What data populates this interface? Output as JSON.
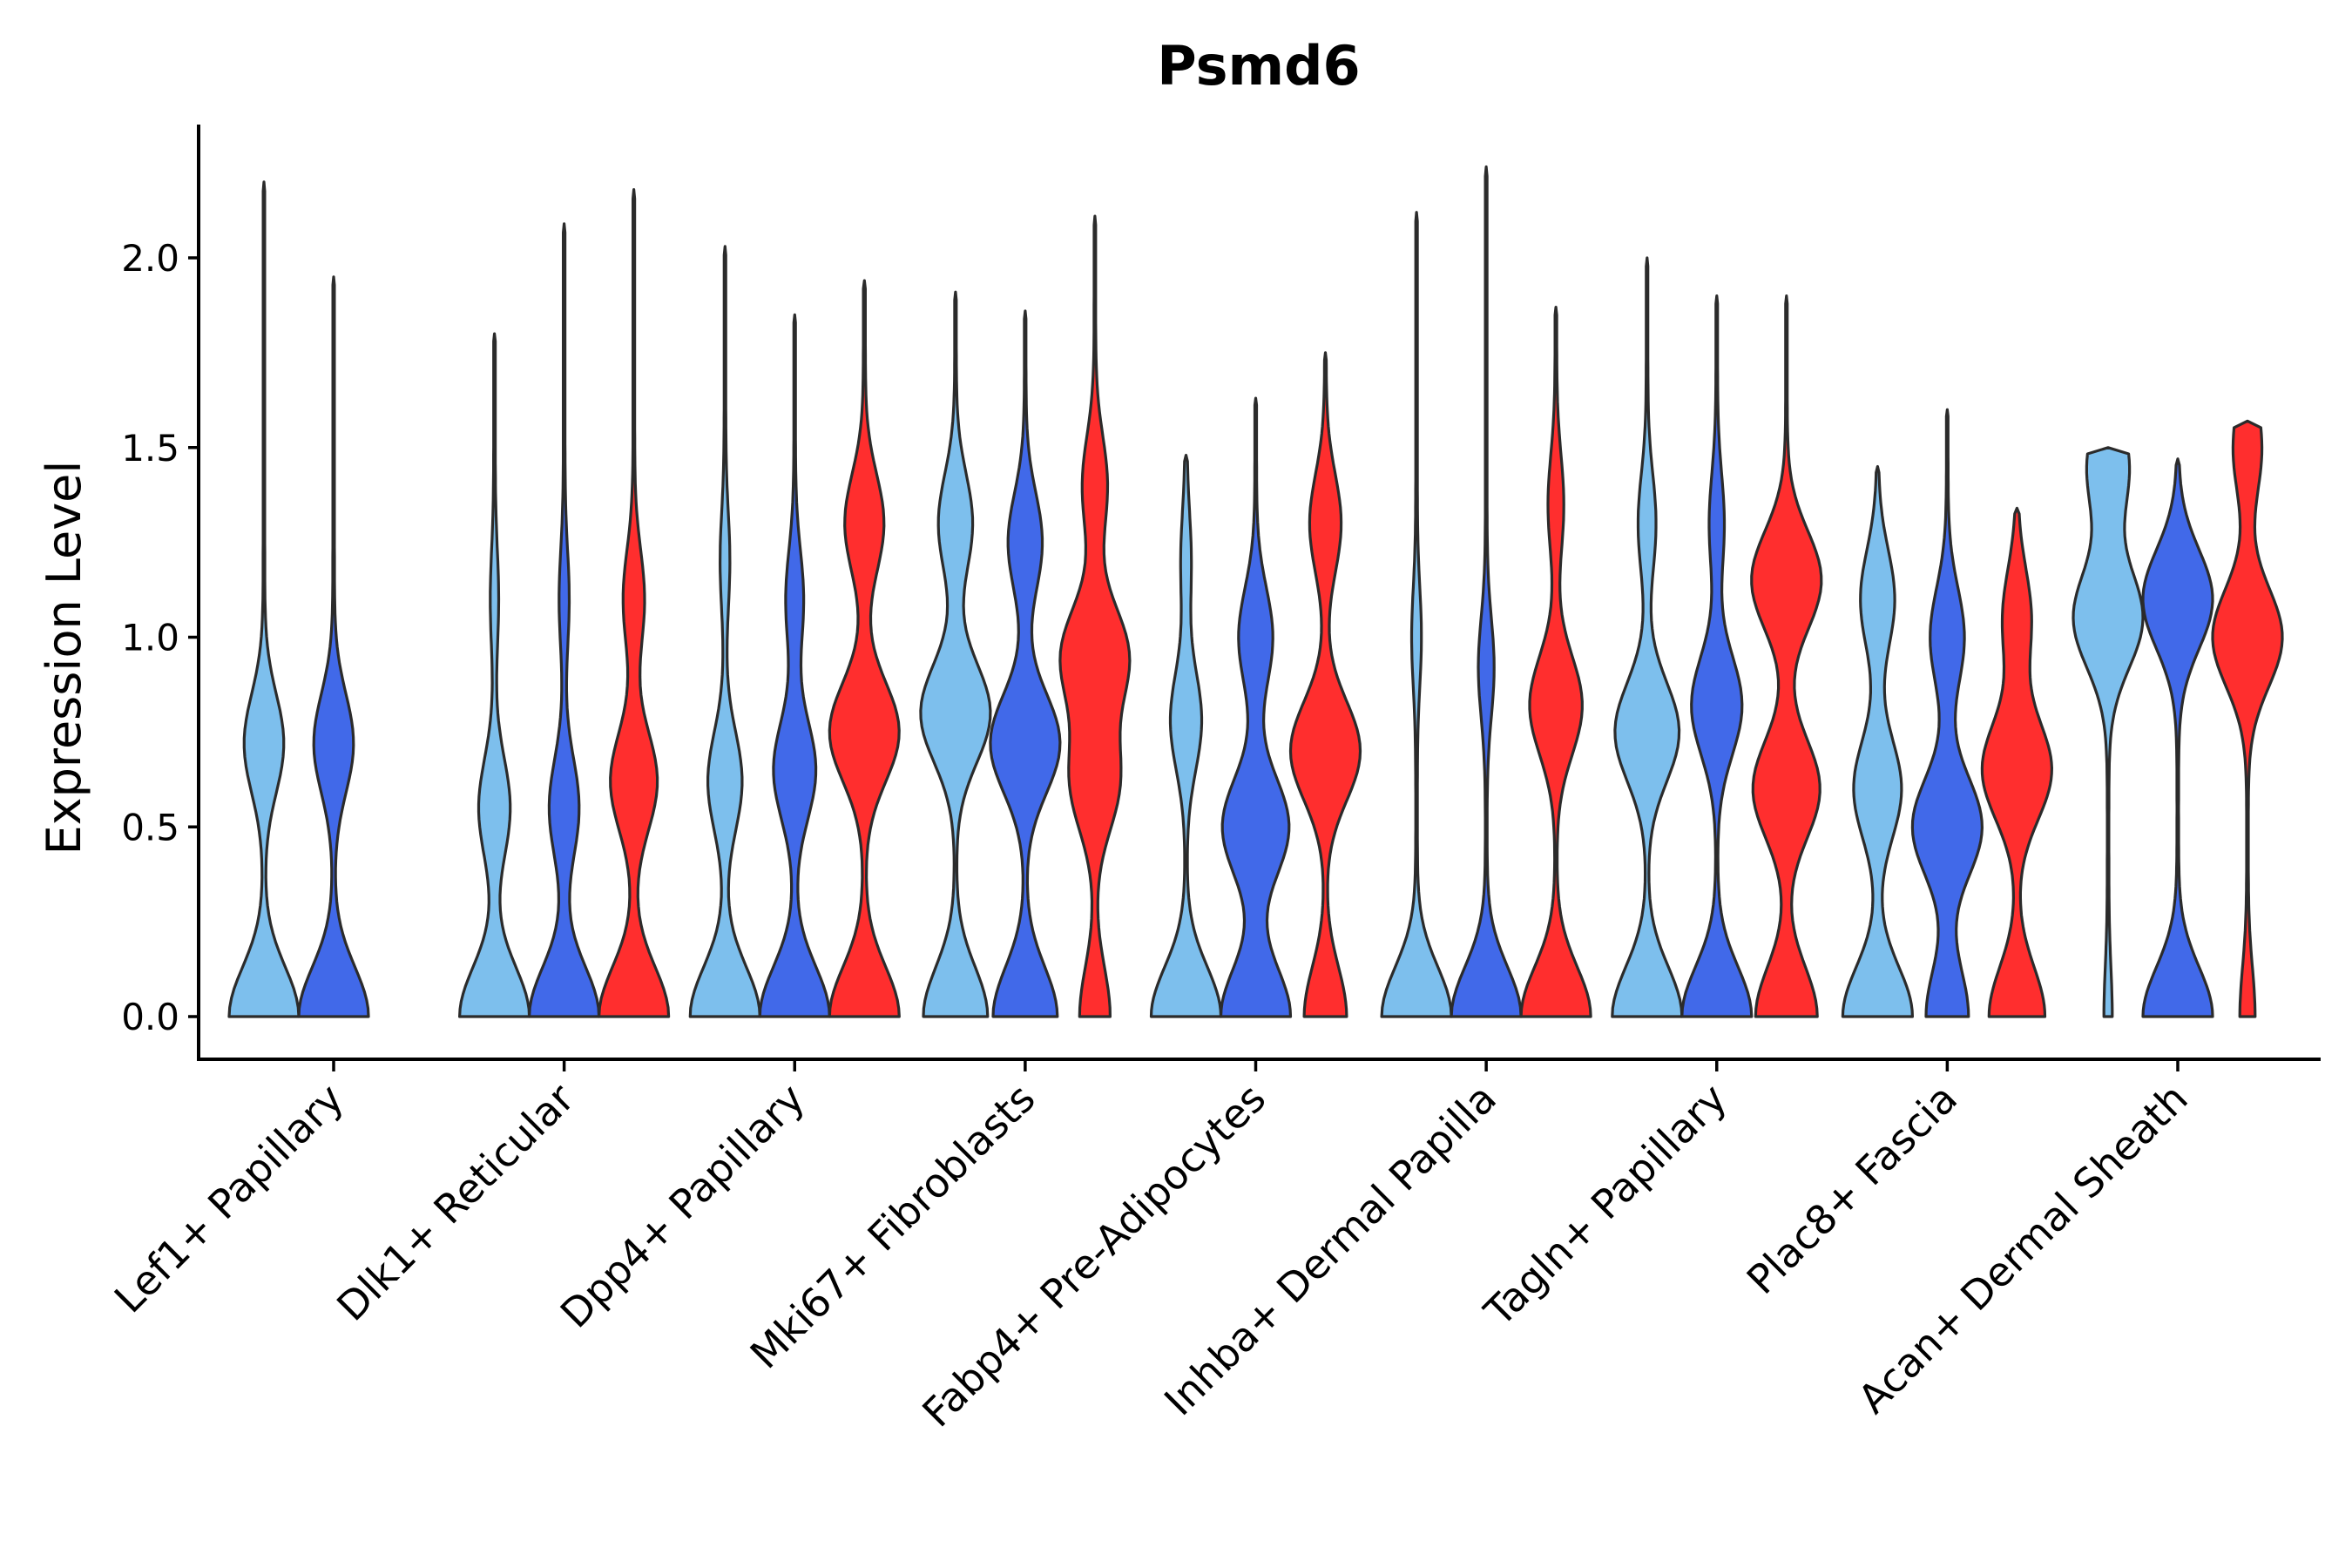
{
  "chart_data": {
    "type": "violin",
    "title": "Psmd6",
    "xlabel": "",
    "ylabel": "Expression Level",
    "ylim": [
      -0.11,
      2.35
    ],
    "yticks": [
      0.0,
      0.5,
      1.0,
      1.5,
      2.0
    ],
    "ytick_labels": [
      "0.0",
      "0.5",
      "1.0",
      "1.5",
      "2.0"
    ],
    "grid": false,
    "legend": "none",
    "split_colors": [
      "#7DBFED",
      "#4169E9",
      "#FF2E2E"
    ],
    "categories": [
      "Lef1+ Papillary",
      "Dlk1+ Reticular",
      "Dpp4+ Papillary",
      "Mki67+ Fibroblasts",
      "Fabp4+ Pre-Adipocytes",
      "Inhba+ Dermal Papilla",
      "Tagln+ Papillary",
      "Plac8+ Fascia",
      "Acan+ Dermal Sheath"
    ],
    "violins": [
      {
        "category_index": 0,
        "split": 0,
        "max": 2.2,
        "peaks": [
          [
            0.0,
            0.5
          ],
          [
            0.72,
            0.28
          ]
        ]
      },
      {
        "category_index": 0,
        "split": 1,
        "max": 1.95,
        "peaks": [
          [
            0.0,
            0.5
          ],
          [
            0.72,
            0.28
          ]
        ]
      },
      {
        "category_index": 1,
        "split": 0,
        "max": 1.8,
        "peaks": [
          [
            0.0,
            0.5
          ],
          [
            0.55,
            0.22
          ],
          [
            1.1,
            0.05
          ]
        ]
      },
      {
        "category_index": 1,
        "split": 1,
        "max": 2.09,
        "peaks": [
          [
            0.0,
            0.48
          ],
          [
            0.55,
            0.2
          ],
          [
            1.1,
            0.06
          ]
        ]
      },
      {
        "category_index": 1,
        "split": 2,
        "max": 2.18,
        "peaks": [
          [
            0.0,
            0.48
          ],
          [
            0.62,
            0.32
          ],
          [
            1.1,
            0.14
          ]
        ]
      },
      {
        "category_index": 2,
        "split": 0,
        "max": 2.03,
        "peaks": [
          [
            0.0,
            0.5
          ],
          [
            0.62,
            0.24
          ],
          [
            1.2,
            0.06
          ]
        ]
      },
      {
        "category_index": 2,
        "split": 1,
        "max": 1.85,
        "peaks": [
          [
            0.0,
            0.5
          ],
          [
            0.65,
            0.3
          ],
          [
            1.1,
            0.12
          ]
        ]
      },
      {
        "category_index": 2,
        "split": 2,
        "max": 1.94,
        "peaks": [
          [
            0.0,
            0.4
          ],
          [
            0.75,
            0.4
          ],
          [
            1.3,
            0.22
          ]
        ]
      },
      {
        "category_index": 3,
        "split": 0,
        "max": 1.91,
        "peaks": [
          [
            0.0,
            0.46
          ],
          [
            0.8,
            0.5
          ],
          [
            1.3,
            0.24
          ]
        ]
      },
      {
        "category_index": 3,
        "split": 1,
        "max": 1.86,
        "peaks": [
          [
            0.0,
            0.46
          ],
          [
            0.72,
            0.5
          ],
          [
            1.25,
            0.24
          ]
        ]
      },
      {
        "category_index": 3,
        "split": 2,
        "max": 2.11,
        "peaks": [
          [
            0.0,
            0.22
          ],
          [
            0.62,
            0.36
          ],
          [
            0.95,
            0.5
          ],
          [
            1.4,
            0.18
          ]
        ]
      },
      {
        "category_index": 4,
        "split": 0,
        "max": 1.48,
        "peaks": [
          [
            0.0,
            0.46
          ],
          [
            0.78,
            0.2
          ],
          [
            1.2,
            0.06
          ]
        ]
      },
      {
        "category_index": 4,
        "split": 1,
        "max": 1.63,
        "peaks": [
          [
            0.0,
            0.46
          ],
          [
            0.5,
            0.44
          ],
          [
            1.0,
            0.22
          ]
        ]
      },
      {
        "category_index": 4,
        "split": 2,
        "max": 1.75,
        "peaks": [
          [
            0.0,
            0.3
          ],
          [
            0.7,
            0.5
          ],
          [
            1.3,
            0.22
          ]
        ]
      },
      {
        "category_index": 5,
        "split": 0,
        "max": 2.12,
        "peaks": [
          [
            0.0,
            0.5
          ],
          [
            1.0,
            0.06
          ]
        ]
      },
      {
        "category_index": 5,
        "split": 1,
        "max": 2.24,
        "peaks": [
          [
            0.0,
            0.48
          ],
          [
            0.92,
            0.1
          ]
        ]
      },
      {
        "category_index": 5,
        "split": 2,
        "max": 1.87,
        "peaks": [
          [
            0.0,
            0.48
          ],
          [
            0.82,
            0.36
          ],
          [
            1.35,
            0.1
          ]
        ]
      },
      {
        "category_index": 6,
        "split": 0,
        "max": 2.0,
        "peaks": [
          [
            0.0,
            0.5
          ],
          [
            0.75,
            0.46
          ],
          [
            1.3,
            0.12
          ]
        ]
      },
      {
        "category_index": 6,
        "split": 1,
        "max": 1.9,
        "peaks": [
          [
            0.0,
            0.5
          ],
          [
            0.82,
            0.36
          ],
          [
            1.3,
            0.1
          ]
        ]
      },
      {
        "category_index": 6,
        "split": 2,
        "max": 1.9,
        "peaks": [
          [
            0.0,
            0.44
          ],
          [
            0.6,
            0.48
          ],
          [
            1.15,
            0.5
          ]
        ]
      },
      {
        "category_index": 7,
        "split": 0,
        "max": 1.45,
        "peaks": [
          [
            0.0,
            0.5
          ],
          [
            0.6,
            0.34
          ],
          [
            1.1,
            0.24
          ]
        ]
      },
      {
        "category_index": 7,
        "split": 1,
        "max": 1.6,
        "peaks": [
          [
            0.0,
            0.3
          ],
          [
            0.5,
            0.5
          ],
          [
            1.0,
            0.24
          ]
        ]
      },
      {
        "category_index": 7,
        "split": 2,
        "max": 1.34,
        "peaks": [
          [
            0.0,
            0.4
          ],
          [
            0.65,
            0.5
          ],
          [
            1.05,
            0.2
          ]
        ]
      },
      {
        "category_index": 8,
        "split": 0,
        "max": 1.5,
        "peaks": [
          [
            0.0,
            0.05
          ],
          [
            1.05,
            0.5
          ],
          [
            1.45,
            0.3
          ]
        ]
      },
      {
        "category_index": 8,
        "split": 1,
        "max": 1.47,
        "peaks": [
          [
            0.0,
            0.5
          ],
          [
            1.1,
            0.5
          ]
        ]
      },
      {
        "category_index": 8,
        "split": 2,
        "max": 1.57,
        "peaks": [
          [
            0.0,
            0.1
          ],
          [
            1.0,
            0.5
          ],
          [
            1.5,
            0.2
          ]
        ]
      }
    ]
  }
}
